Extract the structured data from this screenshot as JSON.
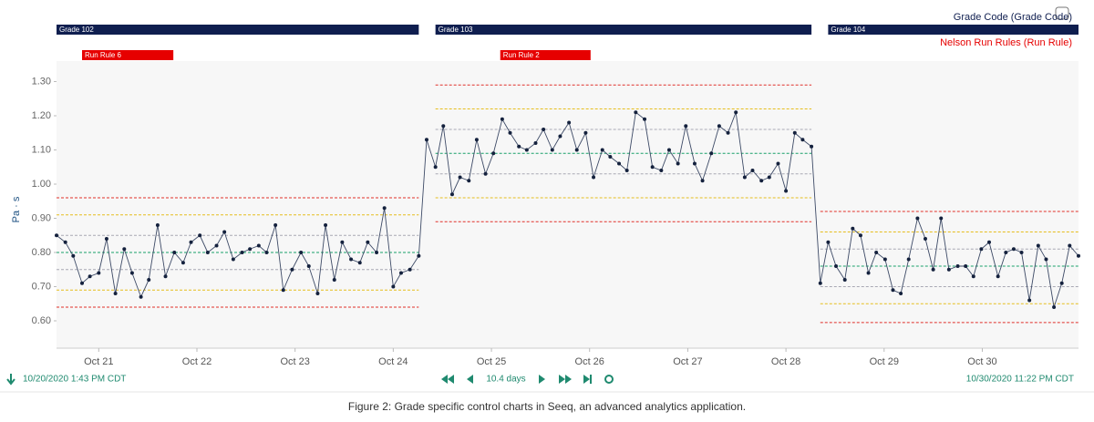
{
  "chart_data": {
    "type": "line",
    "y_label": "Pa · s",
    "xlim": [
      20.57,
      30.98
    ],
    "xticks": [
      {
        "value": 21,
        "label": "Oct 21"
      },
      {
        "value": 22,
        "label": "Oct 22"
      },
      {
        "value": 23,
        "label": "Oct 23"
      },
      {
        "value": 24,
        "label": "Oct 24"
      },
      {
        "value": 25,
        "label": "Oct 25"
      },
      {
        "value": 26,
        "label": "Oct 26"
      },
      {
        "value": 27,
        "label": "Oct 27"
      },
      {
        "value": 28,
        "label": "Oct 28"
      },
      {
        "value": 29,
        "label": "Oct 29"
      },
      {
        "value": 30,
        "label": "Oct 30"
      }
    ],
    "ylim": [
      0.52,
      1.36
    ],
    "yticks": [
      {
        "value": 0.6,
        "label": "0.60"
      },
      {
        "value": 0.7,
        "label": "0.70"
      },
      {
        "value": 0.8,
        "label": "0.80"
      },
      {
        "value": 0.9,
        "label": "0.90"
      },
      {
        "value": 1.0,
        "label": "1.00"
      },
      {
        "value": 1.1,
        "label": "1.10"
      },
      {
        "value": 1.2,
        "label": "1.20"
      },
      {
        "value": 1.3,
        "label": "1.30"
      }
    ],
    "x": [
      20.57,
      20.66,
      20.74,
      20.83,
      20.91,
      21.0,
      21.08,
      21.17,
      21.26,
      21.34,
      21.43,
      21.51,
      21.6,
      21.68,
      21.77,
      21.86,
      21.94,
      22.03,
      22.11,
      22.2,
      22.28,
      22.37,
      22.46,
      22.54,
      22.63,
      22.71,
      22.8,
      22.88,
      22.97,
      23.06,
      23.14,
      23.23,
      23.31,
      23.4,
      23.48,
      23.57,
      23.66,
      23.74,
      23.83,
      23.91,
      24.0,
      24.08,
      24.17,
      24.26,
      24.34,
      24.43,
      24.51,
      24.6,
      24.68,
      24.77,
      24.85,
      24.94,
      25.02,
      25.11,
      25.19,
      25.28,
      25.36,
      25.45,
      25.53,
      25.62,
      25.7,
      25.79,
      25.87,
      25.96,
      26.04,
      26.13,
      26.21,
      26.3,
      26.38,
      26.47,
      26.56,
      26.64,
      26.73,
      26.81,
      26.9,
      26.98,
      27.07,
      27.15,
      27.24,
      27.32,
      27.41,
      27.49,
      27.58,
      27.66,
      27.75,
      27.83,
      27.92,
      28.0,
      28.09,
      28.17,
      28.26,
      28.35,
      28.43,
      28.51,
      28.6,
      28.68,
      28.76,
      28.84,
      28.92,
      29.01,
      29.09,
      29.17,
      29.25,
      29.34,
      29.42,
      29.5,
      29.58,
      29.66,
      29.75,
      29.83,
      29.91,
      29.99,
      30.07,
      30.16,
      30.24,
      30.32,
      30.4,
      30.48,
      30.57,
      30.65,
      30.73,
      30.81,
      30.89,
      30.98
    ],
    "series": [
      {
        "color": "#3d4a66",
        "values": [
          0.85,
          0.83,
          0.79,
          0.71,
          0.73,
          0.74,
          0.84,
          0.68,
          0.81,
          0.74,
          0.67,
          0.72,
          0.88,
          0.73,
          0.8,
          0.77,
          0.83,
          0.85,
          0.8,
          0.82,
          0.86,
          0.78,
          0.8,
          0.81,
          0.82,
          0.8,
          0.88,
          0.69,
          0.75,
          0.8,
          0.76,
          0.68,
          0.88,
          0.72,
          0.83,
          0.78,
          0.77,
          0.83,
          0.8,
          0.93,
          0.7,
          0.74,
          0.75,
          0.79,
          1.13,
          1.05,
          1.17,
          0.97,
          1.02,
          1.01,
          1.13,
          1.03,
          1.09,
          1.19,
          1.15,
          1.11,
          1.1,
          1.12,
          1.16,
          1.1,
          1.14,
          1.18,
          1.1,
          1.15,
          1.02,
          1.1,
          1.08,
          1.06,
          1.04,
          1.21,
          1.19,
          1.05,
          1.04,
          1.1,
          1.06,
          1.17,
          1.06,
          1.01,
          1.09,
          1.17,
          1.15,
          1.21,
          1.02,
          1.04,
          1.01,
          1.02,
          1.06,
          0.98,
          1.15,
          1.13,
          1.11,
          0.71,
          0.83,
          0.76,
          0.72,
          0.87,
          0.85,
          0.74,
          0.8,
          0.78,
          0.69,
          0.68,
          0.78,
          0.9,
          0.84,
          0.75,
          0.9,
          0.75,
          0.76,
          0.76,
          0.73,
          0.81,
          0.83,
          0.73,
          0.8,
          0.81,
          0.8,
          0.66,
          0.82,
          0.78,
          0.64,
          0.71,
          0.82,
          0.79
        ]
      }
    ],
    "limit_colors": [
      "#e0302a",
      "#e6be1e",
      "#a8a8b4",
      "#18a06a",
      "#a8a8b4",
      "#e6be1e",
      "#e0302a"
    ],
    "limits": [
      {
        "xrange": [
          20.57,
          24.26
        ],
        "values": [
          0.96,
          0.91,
          0.85,
          0.8,
          0.75,
          0.69,
          0.64
        ]
      },
      {
        "xrange": [
          24.43,
          28.26
        ],
        "values": [
          1.29,
          1.22,
          1.16,
          1.09,
          1.03,
          0.96,
          0.89
        ]
      },
      {
        "xrange": [
          28.35,
          30.98
        ],
        "values": [
          0.92,
          0.86,
          0.81,
          0.76,
          0.7,
          0.65,
          0.595
        ]
      }
    ],
    "conditions": [
      {
        "name": "Grade Code (Grade Code)",
        "color": "#0f1e4f",
        "capsules": [
          {
            "label": "Grade 102",
            "x": [
              20.57,
              24.26
            ]
          },
          {
            "label": "Grade 103",
            "x": [
              24.43,
              28.26
            ]
          },
          {
            "label": "Grade 104",
            "x": [
              28.43,
              30.98
            ]
          }
        ]
      },
      {
        "name": "Nelson Run Rules (Run Rule)",
        "color": "#e60000",
        "capsules": [
          {
            "label": "Run Rule 6",
            "x": [
              20.83,
              21.76
            ]
          },
          {
            "label": "Run Rule 2",
            "x": [
              25.09,
              26.01
            ]
          }
        ]
      }
    ],
    "range_start": "10/20/2020 1:43 PM  CDT",
    "range_duration": "10.4 days",
    "range_end": "10/30/2020 11:22 PM  CDT",
    "caption": "Figure 2: Grade specific control charts in Seeq, an advanced analytics application."
  }
}
